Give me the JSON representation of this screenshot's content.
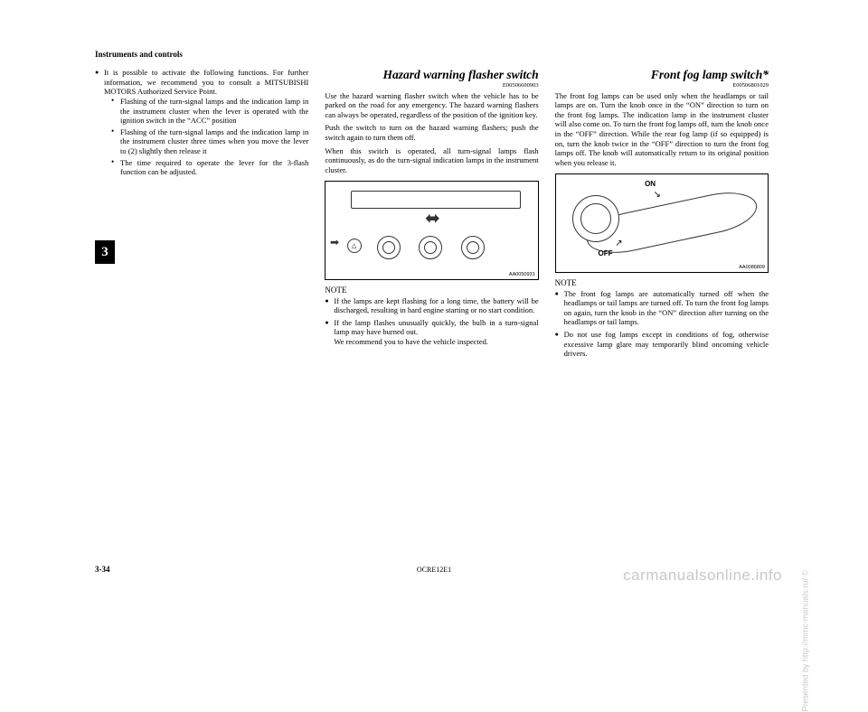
{
  "header": "Instruments and controls",
  "chapter": "3",
  "col1": {
    "li1": "It is possible to activate the following functions. For further information, we recommend you to consult a MITSUBISHI MOTORS Authorized Service Point.",
    "sub1": "Flashing of the turn-signal lamps and the indication lamp in the instrument cluster when the lever is operated with the ignition switch in the “ACC” position",
    "sub2": "Flashing of the turn-signal lamps and the indication lamp in the instrument cluster three times when you move the lever to (2) slightly then release it",
    "sub3": "The time required to operate the lever for the 3-flash function can be adjusted."
  },
  "col2": {
    "title": "Hazard warning flasher switch",
    "enum": "E00506600903",
    "p1": "Use the hazard warning flasher switch when the vehicle has to be parked on the road for any emergency. The hazard warning flashers can always be operated, regardless of the position of the ignition key.",
    "p2": "Push the switch to turn on the hazard warning flashers; push the switch again to turn them off.",
    "p3": "When this switch is operated, all turn-signal lamps flash continuously, as do the turn-signal indication lamps in the instrument cluster.",
    "aa": "AA0050931",
    "note": "NOTE",
    "n1": "If the lamps are kept flashing for a long time, the battery will be discharged, resulting in hard engine starting or no start condition.",
    "n2": "If the lamp flashes unusually quickly, the bulb in a turn-signal lamp may have burned out.",
    "n2b": "We recommend you to have the vehicle inspected."
  },
  "col3": {
    "title": "Front fog lamp switch*",
    "enum": "E00506801029",
    "p1": "The front fog lamps can be used only when the headlamps or tail lamps are on. Turn the knob once in the “ON” direction to turn on the front fog lamps. The indication lamp in the instrument cluster will also come on. To turn the front fog lamps off, turn the knob once in the “OFF” direction. While the rear fog lamp (if so equipped) is on, turn the knob twice in the “OFF” direction to turn the front fog lamps off. The knob will automatically return to its original position when you release it.",
    "on": "ON",
    "off": "OFF",
    "aa": "AA0086809",
    "note": "NOTE",
    "n1": "The front fog lamps are automatically turned off when the headlamps or tail lamps are turned off. To turn the front fog lamps on again, turn the knob in the “ON” direction after turning on the headlamps or tail lamps.",
    "n2": "Do not use fog lamps except in conditions of fog, otherwise excessive lamp glare may temporarily blind oncoming vehicle drivers."
  },
  "footer": {
    "page": "3-34",
    "doc": "OCRE12E1"
  },
  "side": "Presented by http://mmc-manuals.ru/ ©",
  "watermark": "carmanualsonline.info"
}
